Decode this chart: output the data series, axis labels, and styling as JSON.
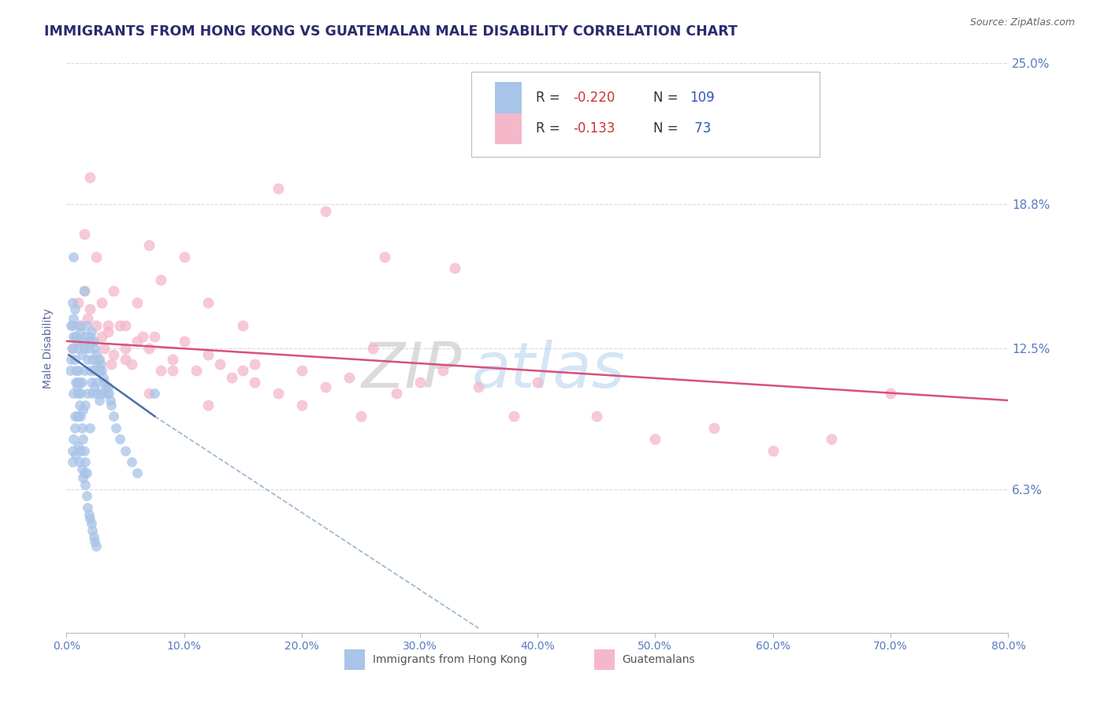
{
  "title": "IMMIGRANTS FROM HONG KONG VS GUATEMALAN MALE DISABILITY CORRELATION CHART",
  "source": "Source: ZipAtlas.com",
  "ylabel": "Male Disability",
  "xlim": [
    0.0,
    80.0
  ],
  "ylim": [
    0.0,
    25.0
  ],
  "xticks": [
    0.0,
    10.0,
    20.0,
    30.0,
    40.0,
    50.0,
    60.0,
    70.0,
    80.0
  ],
  "yticks": [
    0.0,
    6.3,
    12.5,
    18.8,
    25.0
  ],
  "ytick_labels": [
    "",
    "6.3%",
    "12.5%",
    "18.8%",
    "25.0%"
  ],
  "xtick_labels": [
    "0.0%",
    "10.0%",
    "20.0%",
    "30.0%",
    "40.0%",
    "50.0%",
    "60.0%",
    "70.0%",
    "80.0%"
  ],
  "blue_color": "#a8c4e8",
  "pink_color": "#f5b8cb",
  "blue_line_color": "#4a6fa5",
  "pink_line_color": "#d94f7a",
  "blue_dashed_color": "#9ab5d0",
  "label1": "Immigrants from Hong Kong",
  "label2": "Guatemalans",
  "watermark_zip": "ZIP",
  "watermark_atlas": "atlas",
  "title_color": "#2b2b6e",
  "axis_label_color": "#5a6a9a",
  "tick_color": "#5a7abf",
  "grid_color": "#d8d8e8",
  "source_color": "#666666",
  "legend_R_color": "#cc3333",
  "legend_N_color": "#3355bb",
  "legend_text_color": "#333333",
  "blue_scatter_x": [
    0.3,
    0.4,
    0.5,
    0.5,
    0.6,
    0.6,
    0.7,
    0.7,
    0.8,
    0.8,
    0.9,
    0.9,
    1.0,
    1.0,
    1.0,
    1.1,
    1.1,
    1.2,
    1.2,
    1.3,
    1.3,
    1.4,
    1.4,
    1.5,
    1.5,
    1.6,
    1.6,
    1.7,
    1.8,
    1.8,
    1.9,
    2.0,
    2.0,
    2.0,
    2.1,
    2.1,
    2.2,
    2.2,
    2.3,
    2.3,
    2.4,
    2.4,
    2.5,
    2.5,
    2.6,
    2.6,
    2.7,
    2.8,
    2.8,
    2.9,
    3.0,
    3.0,
    3.1,
    3.2,
    3.3,
    3.4,
    3.5,
    3.6,
    3.7,
    3.8,
    4.0,
    4.2,
    4.5,
    5.0,
    5.5,
    6.0,
    0.5,
    0.6,
    0.7,
    0.8,
    0.9,
    1.0,
    1.1,
    1.2,
    1.3,
    1.4,
    1.5,
    1.6,
    1.7,
    1.8,
    1.9,
    2.0,
    2.1,
    2.2,
    2.3,
    2.4,
    2.5,
    0.5,
    0.6,
    0.7,
    0.8,
    0.9,
    1.0,
    1.1,
    1.2,
    1.3,
    1.4,
    1.5,
    1.6,
    1.7,
    0.4,
    0.5,
    0.6,
    1.5,
    2.0,
    7.5
  ],
  "blue_scatter_y": [
    11.5,
    12.0,
    13.5,
    8.0,
    13.8,
    10.5,
    14.2,
    9.5,
    13.0,
    11.0,
    12.8,
    10.8,
    12.5,
    11.5,
    9.5,
    13.5,
    11.0,
    13.2,
    10.5,
    12.2,
    11.0,
    12.8,
    9.8,
    12.5,
    11.5,
    13.0,
    10.0,
    13.5,
    12.0,
    10.5,
    12.5,
    12.8,
    11.5,
    9.0,
    13.2,
    11.0,
    12.0,
    10.5,
    12.8,
    11.5,
    12.5,
    10.8,
    12.2,
    11.0,
    11.8,
    10.5,
    12.0,
    11.5,
    10.2,
    11.8,
    11.5,
    10.5,
    11.2,
    11.0,
    10.8,
    10.5,
    10.8,
    10.5,
    10.2,
    10.0,
    9.5,
    9.0,
    8.5,
    8.0,
    7.5,
    7.0,
    7.5,
    8.5,
    9.0,
    7.8,
    9.5,
    8.2,
    7.5,
    8.0,
    7.2,
    6.8,
    7.0,
    6.5,
    6.0,
    5.5,
    5.2,
    5.0,
    4.8,
    4.5,
    4.2,
    4.0,
    3.8,
    12.5,
    13.0,
    12.0,
    11.5,
    11.0,
    10.5,
    10.0,
    9.5,
    9.0,
    8.5,
    8.0,
    7.5,
    7.0,
    13.5,
    14.5,
    16.5,
    15.0,
    13.0,
    10.5
  ],
  "pink_scatter_x": [
    0.5,
    0.8,
    1.0,
    1.2,
    1.5,
    1.8,
    2.0,
    2.2,
    2.5,
    2.8,
    3.0,
    3.2,
    3.5,
    3.8,
    4.0,
    4.5,
    5.0,
    5.5,
    6.0,
    6.5,
    7.0,
    7.5,
    8.0,
    9.0,
    10.0,
    11.0,
    12.0,
    13.0,
    14.0,
    15.0,
    16.0,
    18.0,
    20.0,
    22.0,
    24.0,
    26.0,
    28.0,
    30.0,
    32.0,
    35.0,
    38.0,
    40.0,
    45.0,
    50.0,
    55.0,
    60.0,
    65.0,
    70.0,
    1.5,
    2.0,
    2.5,
    3.0,
    3.5,
    4.0,
    5.0,
    6.0,
    7.0,
    8.0,
    10.0,
    12.0,
    15.0,
    18.0,
    22.0,
    27.0,
    33.0,
    5.0,
    7.0,
    9.0,
    12.0,
    16.0,
    20.0,
    25.0
  ],
  "pink_scatter_y": [
    12.5,
    13.0,
    14.5,
    13.5,
    15.0,
    13.8,
    14.2,
    12.8,
    13.5,
    12.0,
    13.0,
    12.5,
    13.2,
    11.8,
    12.2,
    13.5,
    12.5,
    11.8,
    12.8,
    13.0,
    12.5,
    13.0,
    11.5,
    12.0,
    12.8,
    11.5,
    12.2,
    11.8,
    11.2,
    11.5,
    11.8,
    10.5,
    11.5,
    10.8,
    11.2,
    12.5,
    10.5,
    11.0,
    11.5,
    10.8,
    9.5,
    11.0,
    9.5,
    8.5,
    9.0,
    8.0,
    8.5,
    10.5,
    17.5,
    20.0,
    16.5,
    14.5,
    13.5,
    15.0,
    13.5,
    14.5,
    17.0,
    15.5,
    16.5,
    14.5,
    13.5,
    19.5,
    18.5,
    16.5,
    16.0,
    12.0,
    10.5,
    11.5,
    10.0,
    11.0,
    10.0,
    9.5
  ],
  "pink_line_start_x": 0.0,
  "pink_line_start_y": 12.8,
  "pink_line_end_x": 80.0,
  "pink_line_end_y": 10.2,
  "blue_solid_start_x": 0.2,
  "blue_solid_start_y": 12.2,
  "blue_solid_end_x": 7.5,
  "blue_solid_end_y": 9.5,
  "blue_dashed_start_x": 7.5,
  "blue_dashed_start_y": 9.5,
  "blue_dashed_end_x": 35.0,
  "blue_dashed_end_y": 0.2
}
